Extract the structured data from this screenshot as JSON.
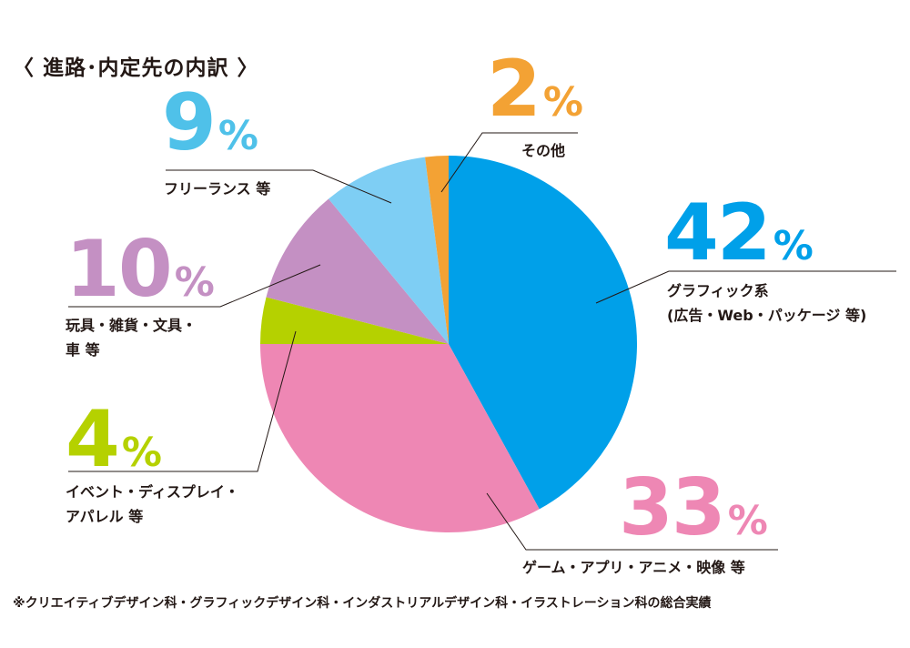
{
  "title": "〈 進路･内定先の内訳 〉",
  "percent_symbol": "%",
  "footnote": "※クリエイティブデザイン科・グラフィックデザイン科・インダストリアルデザイン科・イラストレーション科の総合実績",
  "chart_data": {
    "type": "pie",
    "title": "〈 進路･内定先の内訳 〉",
    "unit": "%",
    "slices": [
      {
        "value": 42,
        "label_line1": "グラフィック系",
        "label_line2": "(広告・Web・パッケージ 等)",
        "color": "#00a0e9"
      },
      {
        "value": 33,
        "label_line1": "ゲーム・アプリ・アニメ・映像 等",
        "label_line2": "",
        "color": "#ee87b4"
      },
      {
        "value": 4,
        "label_line1": "イベント・ディスプレイ・",
        "label_line2": "アパレル 等",
        "color": "#b5d100"
      },
      {
        "value": 10,
        "label_line1": "玩具・雑貨・文具・",
        "label_line2": "車 等",
        "color": "#c490c3"
      },
      {
        "value": 9,
        "label_line1": "フリーランス 等",
        "label_line2": "",
        "color": "#7ecef4"
      },
      {
        "value": 2,
        "label_line1": "その他",
        "label_line2": "",
        "color": "#f3a234"
      }
    ]
  }
}
